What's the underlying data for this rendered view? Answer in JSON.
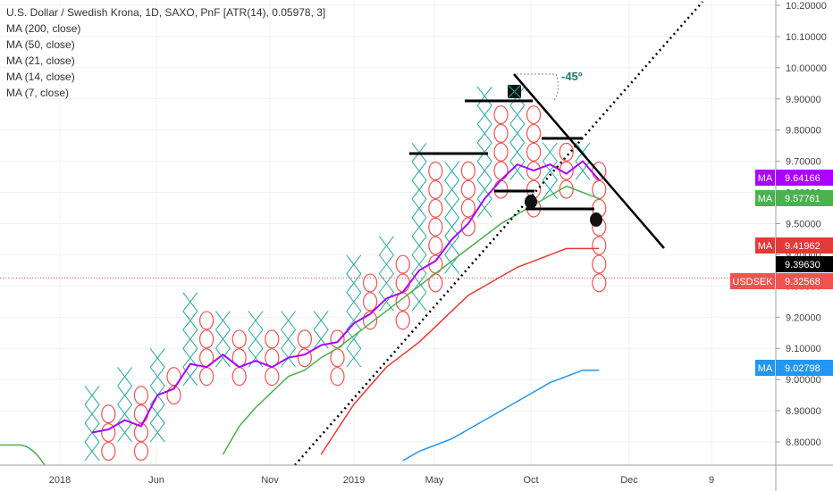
{
  "legend": {
    "title": "U.S. Dollar / Swedish Krona, 1D, SAXO, PnF [ATR(14), 0.05978, 3]",
    "ma200": "MA (200, close)",
    "ma50": "MA (50, close)",
    "ma21": "MA (21, close)",
    "ma14": "MA (14, close)",
    "ma7": "MA (7, close)"
  },
  "annotation": {
    "angle_label": "-45º"
  },
  "colors": {
    "x_box": "#26a69a",
    "o_box": "#ef5350",
    "ma7": "#aa00ff",
    "ma14": "#4caf50",
    "ma21": "#e53935",
    "ma50": "#2196f3",
    "ma200": "#4caf50"
  },
  "price_tags": [
    {
      "prefix": "MA",
      "value": "9.64166",
      "color": "#aa00ff"
    },
    {
      "prefix": "MA",
      "value": "9.57761",
      "color": "#4caf50"
    },
    {
      "prefix": "MA",
      "value": "9.41962",
      "color": "#e53935"
    },
    {
      "prefix": "",
      "value": "9.39630",
      "color": "#000000"
    },
    {
      "prefix": "USDSEK",
      "value": "9.32568",
      "color": "#ef5350"
    },
    {
      "prefix": "MA",
      "value": "9.02798",
      "color": "#2196f3"
    }
  ],
  "chart_data": {
    "type": "point-and-figure",
    "symbol": "USDSEK",
    "box_size": 0.05978,
    "reversal": 3,
    "y_ticks": [
      "8.80000",
      "8.90000",
      "9.00000",
      "9.10000",
      "9.20000",
      "9.30000",
      "9.40000",
      "9.50000",
      "9.60000",
      "9.70000",
      "9.80000",
      "9.90000",
      "10.00000",
      "10.10000",
      "10.20000"
    ],
    "ylim": [
      8.72,
      10.24
    ],
    "x_ticks": [
      "2018",
      "Jun",
      "Nov",
      "2019",
      "May",
      "Oct",
      "Dec",
      "9"
    ],
    "columns": [
      {
        "type": "X",
        "low": 8.77,
        "high": 8.95
      },
      {
        "type": "O",
        "low": 8.77,
        "high": 8.89
      },
      {
        "type": "X",
        "low": 8.83,
        "high": 9.01
      },
      {
        "type": "O",
        "low": 8.77,
        "high": 8.95
      },
      {
        "type": "X",
        "low": 8.83,
        "high": 9.07
      },
      {
        "type": "O",
        "low": 8.95,
        "high": 9.01
      },
      {
        "type": "X",
        "low": 9.01,
        "high": 9.25
      },
      {
        "type": "O",
        "low": 9.01,
        "high": 9.19
      },
      {
        "type": "X",
        "low": 9.07,
        "high": 9.19
      },
      {
        "type": "O",
        "low": 9.01,
        "high": 9.13
      },
      {
        "type": "X",
        "low": 9.07,
        "high": 9.19
      },
      {
        "type": "O",
        "low": 9.01,
        "high": 9.13
      },
      {
        "type": "X",
        "low": 9.07,
        "high": 9.19
      },
      {
        "type": "O",
        "low": 9.07,
        "high": 9.13
      },
      {
        "type": "X",
        "low": 9.13,
        "high": 9.19
      },
      {
        "type": "O",
        "low": 9.01,
        "high": 9.13
      },
      {
        "type": "X",
        "low": 9.07,
        "high": 9.37
      },
      {
        "type": "O",
        "low": 9.19,
        "high": 9.31
      },
      {
        "type": "X",
        "low": 9.25,
        "high": 9.43
      },
      {
        "type": "O",
        "low": 9.19,
        "high": 9.37
      },
      {
        "type": "X",
        "low": 9.25,
        "high": 9.73
      },
      {
        "type": "O",
        "low": 9.31,
        "high": 9.67
      },
      {
        "type": "X",
        "low": 9.37,
        "high": 9.67
      },
      {
        "type": "O",
        "low": 9.49,
        "high": 9.67
      },
      {
        "type": "X",
        "low": 9.55,
        "high": 9.91
      },
      {
        "type": "O",
        "low": 9.61,
        "high": 9.85
      },
      {
        "type": "X",
        "low": 9.67,
        "high": 9.91
      },
      {
        "type": "O",
        "low": 9.55,
        "high": 9.85
      },
      {
        "type": "X",
        "low": 9.61,
        "high": 9.73
      },
      {
        "type": "O",
        "low": 9.61,
        "high": 9.73
      },
      {
        "type": "X",
        "low": 9.67,
        "high": 9.73
      },
      {
        "type": "O",
        "low": 9.31,
        "high": 9.67
      }
    ],
    "series": [
      {
        "name": "MA (7, close)",
        "last": 9.64166,
        "values": [
          8.83,
          8.84,
          8.87,
          8.85,
          8.95,
          8.97,
          9.05,
          9.04,
          9.08,
          9.04,
          9.06,
          9.04,
          9.07,
          9.08,
          9.11,
          9.12,
          9.18,
          9.21,
          9.26,
          9.28,
          9.35,
          9.38,
          9.45,
          9.5,
          9.58,
          9.64,
          9.69,
          9.67,
          9.69,
          9.66,
          9.7,
          9.64
        ]
      },
      {
        "name": "MA (14, close)",
        "last": 9.57761,
        "values": [
          null,
          null,
          null,
          null,
          null,
          null,
          null,
          null,
          8.76,
          8.85,
          8.91,
          8.96,
          9.01,
          9.03,
          9.07,
          9.1,
          9.14,
          9.18,
          9.22,
          9.26,
          9.3,
          9.34,
          9.38,
          9.42,
          9.46,
          9.5,
          9.53,
          9.56,
          9.59,
          9.62,
          9.6,
          9.58
        ]
      },
      {
        "name": "MA (21, close)",
        "last": 9.41962,
        "values": [
          null,
          null,
          null,
          null,
          null,
          null,
          null,
          null,
          null,
          null,
          null,
          null,
          null,
          null,
          8.76,
          8.84,
          8.92,
          8.98,
          9.04,
          9.08,
          9.12,
          9.17,
          9.22,
          9.27,
          9.3,
          9.33,
          9.36,
          9.38,
          9.4,
          9.42,
          9.42,
          9.42
        ]
      },
      {
        "name": "MA (50, close)",
        "last": 9.02798,
        "values": [
          null,
          null,
          null,
          null,
          null,
          null,
          null,
          null,
          null,
          null,
          null,
          null,
          null,
          null,
          null,
          null,
          null,
          null,
          null,
          8.74,
          8.77,
          8.79,
          8.81,
          8.84,
          8.87,
          8.9,
          8.93,
          8.96,
          8.99,
          9.01,
          9.03,
          9.03
        ]
      },
      {
        "name": "MA (200, close)",
        "last": 8.79,
        "values": [
          8.79
        ]
      }
    ],
    "current_price": 9.3963,
    "reference_line": 9.32568,
    "annotations": {
      "angle": "-45º",
      "trendline": "dotted ascending",
      "downtrend": "solid descending",
      "horizontal_levels": [
        9.89,
        9.77,
        9.72,
        9.6,
        9.55
      ]
    }
  }
}
